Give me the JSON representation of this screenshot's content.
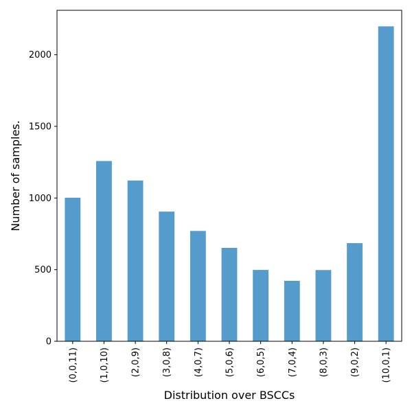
{
  "chart_data": {
    "type": "bar",
    "title": "",
    "xlabel": "Distribution over BSCCs",
    "ylabel": "Number of samples.",
    "categories": [
      "(0,0,11)",
      "(1,0,10)",
      "(2,0,9)",
      "(3,0,8)",
      "(4,0,7)",
      "(5,0,6)",
      "(6,0,5)",
      "(7,0,4)",
      "(8,0,3)",
      "(9,0,2)",
      "(10,0,1)"
    ],
    "values": [
      1002,
      1258,
      1122,
      905,
      770,
      652,
      498,
      422,
      497,
      685,
      2198
    ],
    "ylim": [
      0,
      2310
    ],
    "yticks": [
      0,
      500,
      1000,
      1500,
      2000
    ],
    "grid": false,
    "legend": "none",
    "bar_color": "#559BCB"
  }
}
